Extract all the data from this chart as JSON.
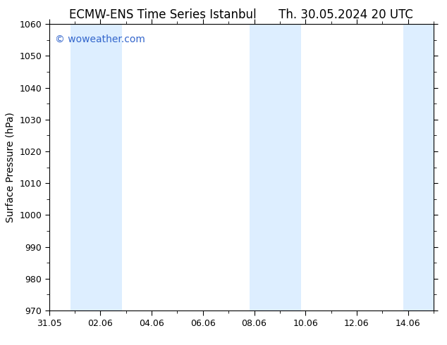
{
  "title_left": "ECMW-ENS Time Series Istanbul",
  "title_right": "Th. 30.05.2024 20 UTC",
  "ylabel": "Surface Pressure (hPa)",
  "ylim": [
    970,
    1060
  ],
  "yticks": [
    970,
    980,
    990,
    1000,
    1010,
    1020,
    1030,
    1040,
    1050,
    1060
  ],
  "xlim": [
    0,
    15
  ],
  "xtick_labels": [
    "31.05",
    "02.06",
    "04.06",
    "06.06",
    "08.06",
    "10.06",
    "12.06",
    "14.06"
  ],
  "xtick_positions": [
    0,
    2,
    4,
    6,
    8,
    10,
    12,
    14
  ],
  "watermark": "© woweather.com",
  "watermark_color": "#3366cc",
  "bg_color": "#ffffff",
  "plot_bg_color": "#ffffff",
  "shaded_bands": [
    {
      "x_start": 0.83,
      "x_end": 1.83,
      "color": "#ddeeff"
    },
    {
      "x_start": 1.83,
      "x_end": 2.83,
      "color": "#ddeeff"
    },
    {
      "x_start": 7.83,
      "x_end": 8.83,
      "color": "#ddeeff"
    },
    {
      "x_start": 8.83,
      "x_end": 9.83,
      "color": "#ddeeff"
    },
    {
      "x_start": 13.83,
      "x_end": 15.0,
      "color": "#ddeeff"
    }
  ],
  "title_fontsize": 12,
  "ylabel_fontsize": 10,
  "tick_fontsize": 9,
  "watermark_fontsize": 10,
  "spine_color": "#000000"
}
